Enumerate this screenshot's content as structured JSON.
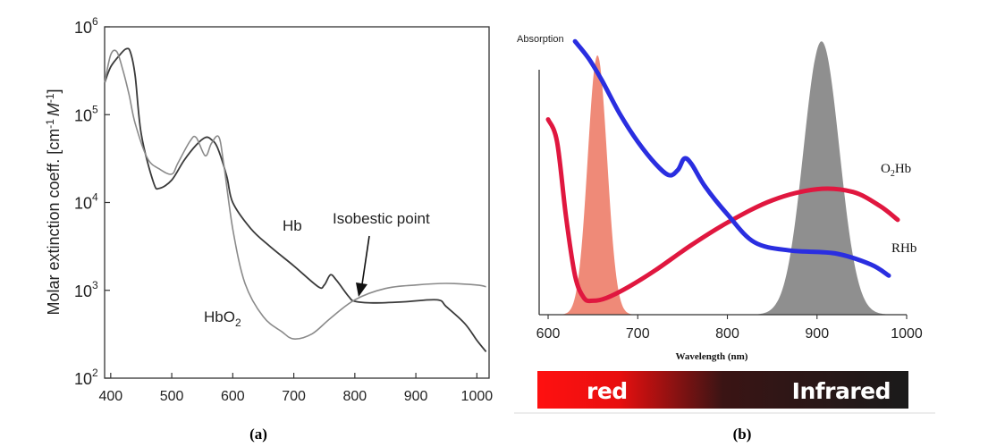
{
  "chart_data": [
    {
      "type": "line",
      "panel_label": "(a)",
      "ylabel_main": "Molar extinction coeff. [cm",
      "ylabel_exp1": "-1",
      "ylabel_unit": "M",
      "ylabel_exp2": "-1",
      "ylabel_close": "]",
      "y_scale": "log",
      "xlim": [
        390,
        1020
      ],
      "ylim": [
        100,
        1000000
      ],
      "x_ticks": [
        "400",
        "500",
        "600",
        "700",
        "800",
        "900",
        "1000"
      ],
      "y_ticks": [
        {
          "base": "10",
          "exp": "2",
          "value": 100
        },
        {
          "base": "10",
          "exp": "3",
          "value": 1000
        },
        {
          "base": "10",
          "exp": "4",
          "value": 10000
        },
        {
          "base": "10",
          "exp": "5",
          "value": 100000
        },
        {
          "base": "10",
          "exp": "6",
          "value": 1000000
        }
      ],
      "series": [
        {
          "name": "Hb",
          "color": "#3a3a3a",
          "x": [
            390,
            400,
            415,
            425,
            432,
            440,
            450,
            470,
            480,
            500,
            520,
            540,
            555,
            565,
            575,
            590,
            600,
            630,
            660,
            700,
            740,
            750,
            760,
            770,
            790,
            800,
            830,
            880,
            935,
            950,
            980,
            1000,
            1015
          ],
          "y": [
            230000,
            350000,
            480000,
            560000,
            520000,
            280000,
            60000,
            17000,
            14500,
            18000,
            30000,
            45000,
            55000,
            52000,
            42000,
            20000,
            10000,
            5000,
            3200,
            1900,
            1100,
            1150,
            1500,
            1300,
            850,
            750,
            720,
            740,
            780,
            650,
            420,
            270,
            200
          ]
        },
        {
          "name": "HbO",
          "name_sub": "2",
          "color": "#8a8a8a",
          "x": [
            390,
            400,
            410,
            420,
            430,
            440,
            460,
            480,
            500,
            510,
            530,
            540,
            555,
            565,
            577,
            585,
            600,
            620,
            650,
            680,
            700,
            730,
            760,
            800,
            850,
            900,
            950,
            1000,
            1015
          ],
          "y": [
            230000,
            480000,
            520000,
            320000,
            170000,
            80000,
            32000,
            24000,
            21000,
            28000,
            50000,
            55000,
            34000,
            47000,
            56000,
            28000,
            5000,
            1200,
            500,
            340,
            280,
            320,
            480,
            780,
            1050,
            1150,
            1200,
            1150,
            1100
          ]
        }
      ],
      "annotations": [
        {
          "text": "Isobestic point",
          "x": 800,
          "y": 820
        }
      ]
    },
    {
      "type": "line",
      "panel_label": "(b)",
      "ylabel": "Absorption",
      "xlabel": "Wavelength (nm)",
      "xlim": [
        590,
        1000
      ],
      "x_ticks": [
        "600",
        "700",
        "800",
        "900",
        "1000"
      ],
      "series": [
        {
          "name": "O",
          "name_sub": "2",
          "name_tail": "Hb",
          "color": "#e0173f",
          "x": [
            600,
            610,
            620,
            630,
            640,
            650,
            665,
            690,
            720,
            760,
            800,
            850,
            900,
            940,
            970,
            990
          ],
          "y": [
            0.7,
            0.62,
            0.35,
            0.14,
            0.06,
            0.05,
            0.06,
            0.1,
            0.16,
            0.25,
            0.33,
            0.41,
            0.45,
            0.44,
            0.39,
            0.34
          ]
        },
        {
          "name": "RHb",
          "color": "#2a2ee0",
          "x": [
            630,
            645,
            660,
            680,
            700,
            720,
            735,
            745,
            752,
            760,
            775,
            800,
            830,
            870,
            920,
            960,
            980
          ],
          "y": [
            0.98,
            0.92,
            0.84,
            0.72,
            0.62,
            0.54,
            0.5,
            0.52,
            0.56,
            0.54,
            0.46,
            0.36,
            0.26,
            0.23,
            0.22,
            0.18,
            0.14
          ]
        }
      ],
      "bands": [
        {
          "name": "red LED",
          "center": 655,
          "width": 28,
          "height": 0.93,
          "color": "#ef8a78"
        },
        {
          "name": "infrared LED",
          "center": 905,
          "width": 52,
          "height": 0.98,
          "color": "#8f8f8f"
        }
      ],
      "color_bar": {
        "left_label": "red",
        "right_label": "Infrared",
        "from": "#ff1010",
        "to": "#1a1a1a"
      }
    }
  ]
}
